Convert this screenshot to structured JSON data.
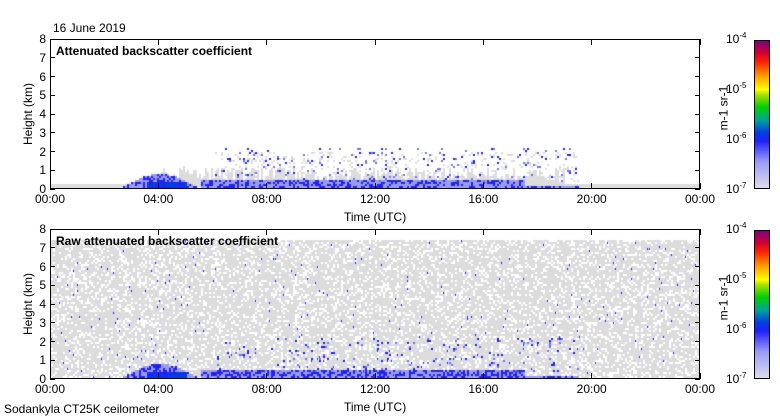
{
  "date": "16 June 2019",
  "footer": "Sodankyla CT25K ceilometer",
  "colors": {
    "background": "#dcdcdc",
    "low": "#9a9af5",
    "mid": "#2020ff",
    "high": "#800080"
  },
  "chart_data": [
    {
      "type": "heatmap",
      "title": "Attenuated backscatter coefficient",
      "xlabel": "Time (UTC)",
      "ylabel": "Height (km)",
      "xticks": [
        "00:00",
        "04:00",
        "08:00",
        "12:00",
        "16:00",
        "20:00",
        "00:00"
      ],
      "yticks": [
        "0",
        "1",
        "2",
        "3",
        "4",
        "5",
        "6",
        "7",
        "8"
      ],
      "xlim": [
        0,
        24
      ],
      "ylim": [
        0,
        8
      ],
      "colorbar": {
        "label": "m-1 sr-1",
        "ticks": [
          "10-7",
          "10-6",
          "10-5",
          "10-4"
        ],
        "range": [
          1e-07,
          0.0001
        ],
        "scale": "log"
      }
    },
    {
      "type": "heatmap",
      "title": "Raw attenuated backscatter coefficient",
      "xlabel": "Time (UTC)",
      "ylabel": "Height (km)",
      "xticks": [
        "00:00",
        "04:00",
        "08:00",
        "12:00",
        "16:00",
        "20:00",
        "00:00"
      ],
      "yticks": [
        "0",
        "1",
        "2",
        "3",
        "4",
        "5",
        "6",
        "7",
        "8"
      ],
      "xlim": [
        0,
        24
      ],
      "ylim": [
        0,
        8
      ],
      "colorbar": {
        "label": "m-1 sr-1",
        "ticks": [
          "10-7",
          "10-6",
          "10-5",
          "10-4"
        ],
        "range": [
          1e-07,
          0.0001
        ],
        "scale": "log"
      }
    }
  ]
}
